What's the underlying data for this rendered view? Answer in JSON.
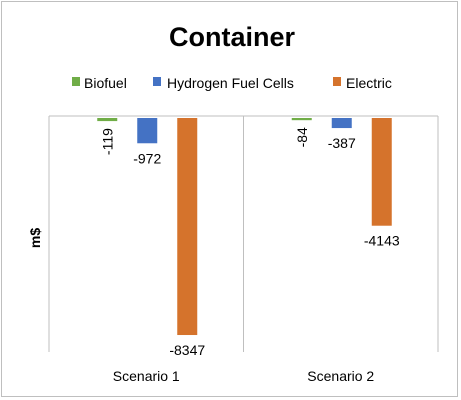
{
  "chart_data": {
    "type": "bar",
    "title": "Container",
    "ylabel": "m$",
    "xlabel": "",
    "categories": [
      "Scenario 1",
      "Scenario 2"
    ],
    "ylim": [
      -9000,
      0
    ],
    "legend_position": "top",
    "grid": false,
    "series": [
      {
        "name": "Biofuel",
        "color": "#70ad47",
        "values": [
          -119,
          -84
        ]
      },
      {
        "name": "Hydrogen Fuel Cells",
        "color": "#4472c4",
        "values": [
          -972,
          -387
        ]
      },
      {
        "name": "Electric",
        "color": "#d5732c",
        "values": [
          -8347,
          -4143
        ]
      }
    ]
  }
}
